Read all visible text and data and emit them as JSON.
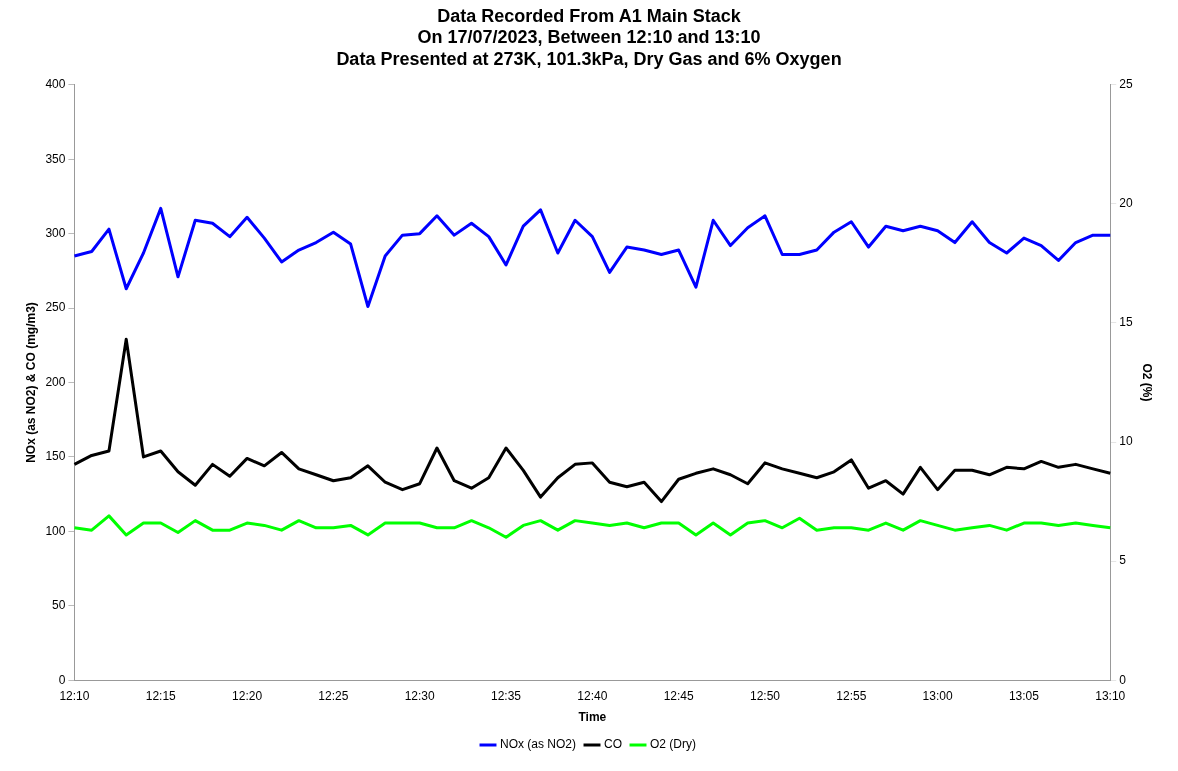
{
  "chart_data": {
    "type": "line",
    "title": "Data Recorded From A1 Main Stack\nOn 17/07/2023, Between 12:10 and 13:10\nData Presented at 273K, 101.3kPa, Dry Gas and 6% Oxygen",
    "xlabel": "Time",
    "ylabel": "NOx (as NO2) & CO (mg/m3)",
    "y2label": "O2 (%)",
    "categories": [
      "12:10",
      null,
      null,
      null,
      null,
      "12:15",
      null,
      null,
      null,
      null,
      "12:20",
      null,
      null,
      null,
      null,
      "12:25",
      null,
      null,
      null,
      null,
      "12:30",
      null,
      null,
      null,
      null,
      "12:35",
      null,
      null,
      null,
      null,
      "12:40",
      null,
      null,
      null,
      null,
      "12:45",
      null,
      null,
      null,
      null,
      "12:50",
      null,
      null,
      null,
      null,
      "12:55",
      null,
      null,
      null,
      null,
      "13:00",
      null,
      null,
      null,
      null,
      "13:05",
      null,
      null,
      null,
      null,
      "13:10"
    ],
    "series": [
      {
        "name": "NOx (as NO2)",
        "color": "#0000ff",
        "values": [
          285,
          288,
          303,
          263,
          287,
          317,
          271,
          309,
          307,
          298,
          311,
          297,
          281,
          289,
          294,
          301,
          293,
          251,
          285,
          299,
          300,
          312,
          299,
          307,
          298,
          279,
          305,
          316,
          287,
          309,
          298,
          274,
          291,
          289,
          286,
          289,
          264,
          309,
          292,
          304,
          312,
          286,
          286,
          289,
          301,
          308,
          291,
          305,
          302,
          305,
          302,
          294,
          308,
          294,
          287,
          297,
          292,
          282,
          294,
          299,
          299
        ]
      },
      {
        "name": "CO",
        "color": "#000000",
        "values": [
          145,
          151,
          154,
          229,
          150,
          154,
          140,
          131,
          145,
          137,
          149,
          144,
          153,
          142,
          138,
          134,
          136,
          144,
          133,
          128,
          132,
          156,
          134,
          129,
          136,
          156,
          141,
          123,
          136,
          145,
          146,
          133,
          130,
          133,
          120,
          135,
          139,
          142,
          138,
          132,
          146,
          142,
          139,
          136,
          140,
          148,
          129,
          134,
          125,
          143,
          128,
          141,
          141,
          138,
          143,
          142,
          147,
          143,
          145,
          142,
          139
        ]
      },
      {
        "name": "O2 (Dry)",
        "color": "#00ff00",
        "axis": "y2",
        "values": [
          6.4,
          6.3,
          6.9,
          6.1,
          6.6,
          6.6,
          6.2,
          6.7,
          6.3,
          6.3,
          6.6,
          6.5,
          6.3,
          6.7,
          6.4,
          6.4,
          6.5,
          6.1,
          6.6,
          6.6,
          6.6,
          6.4,
          6.4,
          6.7,
          6.4,
          6.0,
          6.5,
          6.7,
          6.3,
          6.7,
          6.6,
          6.5,
          6.6,
          6.4,
          6.6,
          6.6,
          6.1,
          6.6,
          6.1,
          6.6,
          6.7,
          6.4,
          6.8,
          6.3,
          6.4,
          6.4,
          6.3,
          6.6,
          6.3,
          6.7,
          6.5,
          6.3,
          6.4,
          6.5,
          6.3,
          6.6,
          6.6,
          6.5,
          6.6,
          6.5,
          6.4
        ]
      }
    ],
    "ylim": [
      0,
      400
    ],
    "yticks": [
      0,
      50,
      100,
      150,
      200,
      250,
      300,
      350,
      400
    ],
    "y2lim": [
      0,
      25
    ],
    "y2ticks": [
      0,
      5,
      10,
      15,
      20,
      25
    ],
    "grid": false,
    "legend": "bottom",
    "marker": "none",
    "line_style": "solid"
  }
}
